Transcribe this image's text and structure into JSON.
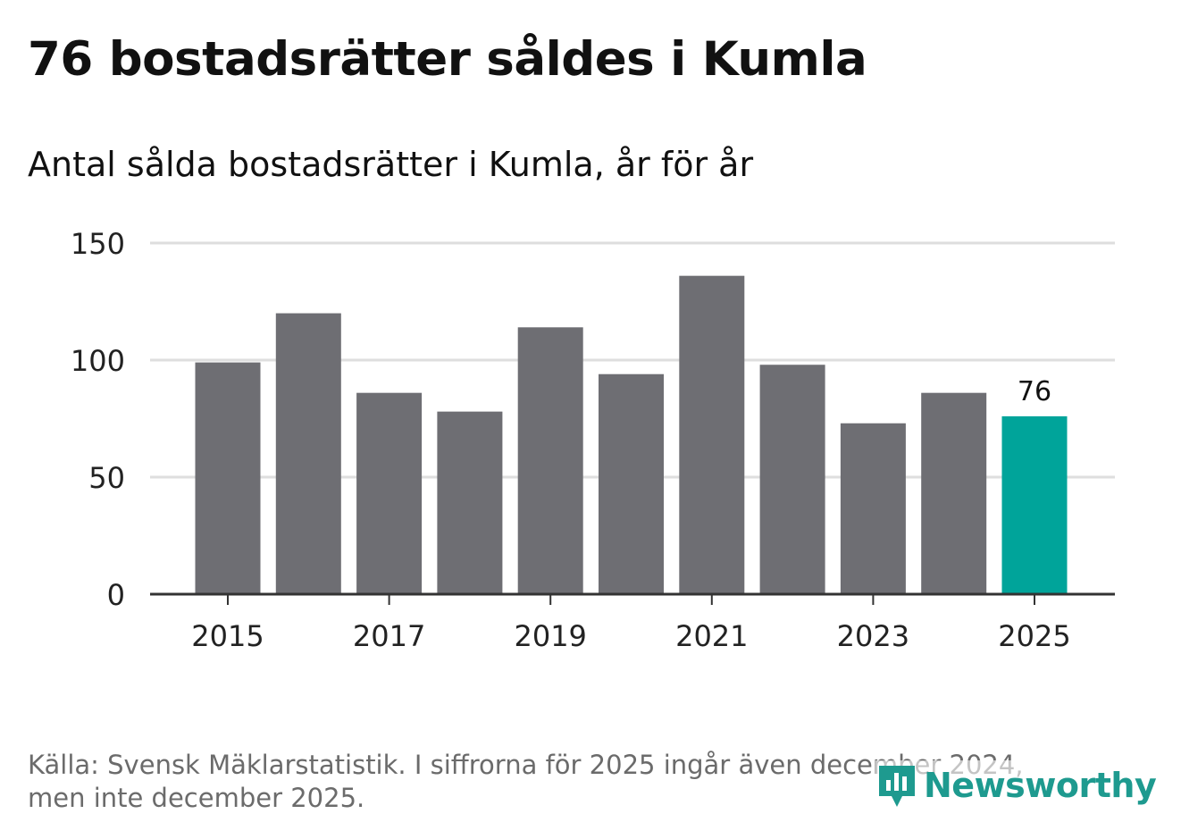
{
  "title": "76 bostadsrätter såldes i Kumla",
  "subtitle": "Antal sålda bostadsrätter i Kumla, år för år",
  "chart_data": {
    "type": "bar",
    "categories": [
      "2015",
      "2016",
      "2017",
      "2018",
      "2019",
      "2020",
      "2021",
      "2022",
      "2023",
      "2024",
      "2025"
    ],
    "values": [
      99,
      120,
      86,
      78,
      114,
      94,
      136,
      98,
      73,
      86,
      76
    ],
    "x_tick_labels": [
      "2015",
      "2017",
      "2019",
      "2021",
      "2023",
      "2025"
    ],
    "y_ticks": [
      0,
      50,
      100,
      150
    ],
    "ylim": [
      0,
      150
    ],
    "highlight_category": "2025",
    "highlight_label": "76",
    "bar_color": "#6e6e73",
    "highlight_color": "#00a49a",
    "grid": true,
    "xlabel": "",
    "ylabel": ""
  },
  "footer": {
    "line1": "Källa: Svensk Mäklarstatistik. I siffrorna för 2025 ingår även december 2024,",
    "line2": "men inte december 2025."
  },
  "logo": {
    "text": "Newsworthy",
    "icon": "newsworthy-logo-icon",
    "color": "#1e9a8f"
  }
}
